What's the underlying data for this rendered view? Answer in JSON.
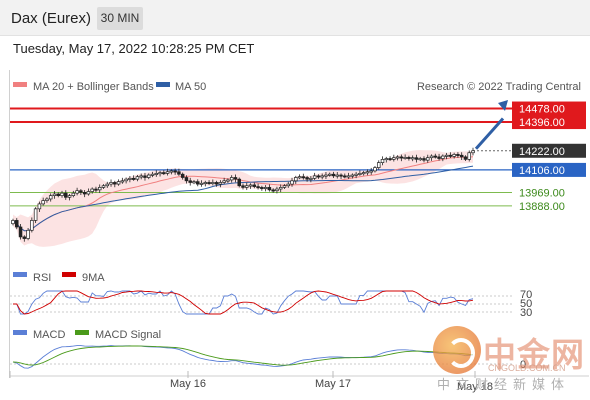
{
  "header": {
    "title": "Dax (Eurex)",
    "timeframe": "30 MIN"
  },
  "timestamp": "Tuesday, May 17, 2022 10:28:25 PM CET",
  "legend": {
    "ma20": "MA 20 + Bollinger Bands",
    "ma50": "MA 50",
    "credit": "Research © 2022 Trading Central",
    "colors": {
      "ma20": "#f08080",
      "ma50": "#2f5fa5"
    }
  },
  "rsi_legend": {
    "rsi": "RSI",
    "ma": "9MA",
    "colors": {
      "rsi": "#5b7fd6",
      "ma": "#d00000"
    }
  },
  "macd_legend": {
    "macd": "MACD",
    "signal": "MACD Signal",
    "colors": {
      "macd": "#5b7fd6",
      "signal": "#4a9a1a"
    }
  },
  "price_labels": {
    "r2": "14478.00",
    "r1": "14396.00",
    "last": "14222.00",
    "s1": "14106.00",
    "s2": "13969.00",
    "s3": "13888.00"
  },
  "rsi_levels": [
    "70",
    "50",
    "30"
  ],
  "x_labels": [
    "May 16",
    "May 17",
    "May 18"
  ],
  "watermark": {
    "name": "中金网",
    "url": "CNGOLD.COM.CN",
    "tagline": "中文财经新媒体"
  },
  "chart_data": {
    "type": "candlestick",
    "ylim": [
      13560,
      14560
    ],
    "levels": {
      "resistance": [
        14478,
        14396
      ],
      "pivot": 14106,
      "support": [
        13969,
        13888
      ],
      "last": 14222
    },
    "closes": [
      13800,
      13760,
      13700,
      13690,
      13740,
      13800,
      13870,
      13900,
      13920,
      13930,
      13950,
      13960,
      13950,
      13965,
      13940,
      13950,
      13965,
      13980,
      13970,
      13960,
      13975,
      13990,
      13985,
      14000,
      14010,
      14020,
      14030,
      14020,
      14035,
      14040,
      14050,
      14055,
      14050,
      14065,
      14070,
      14060,
      14075,
      14080,
      14085,
      14090,
      14085,
      14095,
      14100,
      14095,
      14080,
      14060,
      14040,
      14030,
      14035,
      14020,
      14025,
      14030,
      14025,
      14030,
      14020,
      14030,
      14040,
      14045,
      14060,
      14050,
      14010,
      14000,
      14010,
      14015,
      14005,
      14000,
      13995,
      14000,
      13985,
      13980,
      13990,
      14000,
      14010,
      14020,
      14040,
      14060,
      14065,
      14060,
      14050,
      14055,
      14070,
      14065,
      14070,
      14075,
      14080,
      14070,
      14075,
      14070,
      14065,
      14070,
      14075,
      14080,
      14085,
      14090,
      14095,
      14100,
      14120,
      14150,
      14170,
      14175,
      14170,
      14180,
      14185,
      14178,
      14182,
      14175,
      14180,
      14170,
      14175,
      14165,
      14180,
      14190,
      14185,
      14175,
      14190,
      14195,
      14188,
      14200,
      14195,
      14185,
      14170,
      14210,
      14222
    ]
  }
}
